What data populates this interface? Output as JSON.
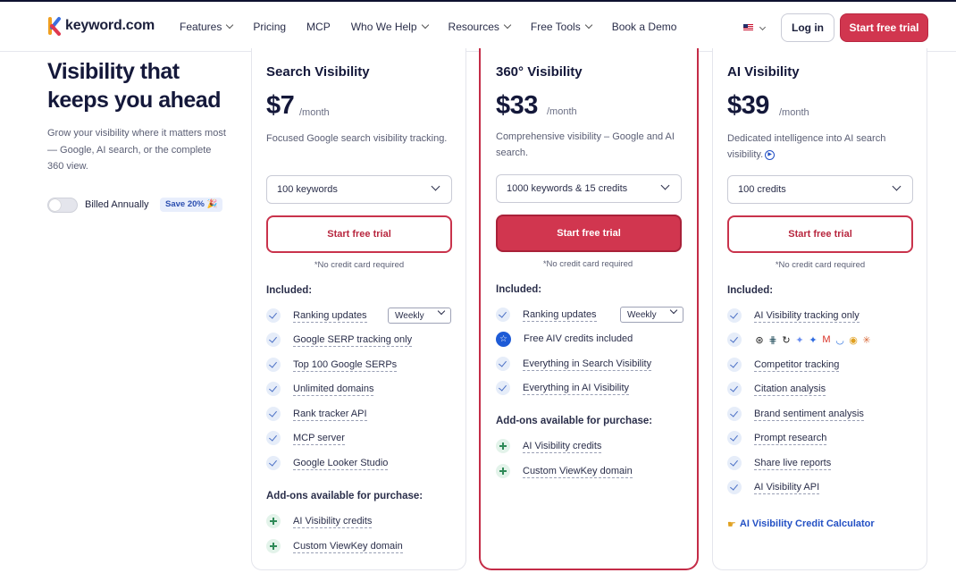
{
  "header": {
    "logo_text": "keyword.com",
    "nav": [
      {
        "label": "Features",
        "dropdown": true
      },
      {
        "label": "Pricing",
        "dropdown": false
      },
      {
        "label": "MCP",
        "dropdown": false
      },
      {
        "label": "Who We Help",
        "dropdown": true
      },
      {
        "label": "Resources",
        "dropdown": true
      },
      {
        "label": "Free Tools",
        "dropdown": true
      },
      {
        "label": "Book a Demo",
        "dropdown": false
      }
    ],
    "language_icon": "us-flag-icon",
    "login_label": "Log in",
    "trial_label": "Start free trial"
  },
  "hero": {
    "title": "Visibility that keeps you ahead",
    "subtitle": "Grow your visibility where it matters most — Google, AI search, or the complete 360 view.",
    "billing_label": "Billed Annually",
    "save_badge": "Save 20% 🎉"
  },
  "colors": {
    "brand": "#d1364f",
    "accent_blue": "#2350c4",
    "check_bg": "#e6edf9",
    "plus_bg": "#e3f3ea"
  },
  "plans": [
    {
      "title": "Search Visibility",
      "price": "$7",
      "period": "/month",
      "description": "Focused Google search visibility tracking.",
      "select_value": "100 keywords",
      "cta": "Start free trial",
      "note": "*No credit card required",
      "included_label": "Included:",
      "features": [
        "Ranking updates",
        "Google SERP tracking only",
        "Top 100 Google SERPs",
        "Unlimited domains",
        "Rank tracker API",
        "MCP server",
        "Google Looker Studio"
      ],
      "frequency": "Weekly",
      "addons_label": "Add-ons available for purchase:",
      "addons": [
        "AI Visibility credits",
        "Custom ViewKey domain"
      ]
    },
    {
      "title": "360° Visibility",
      "price": "$33",
      "period": "/month",
      "description": "Comprehensive visibility – Google and AI search.",
      "select_value": "1000 keywords & 15 credits",
      "cta": "Start free trial",
      "note": "*No credit card required",
      "included_label": "Included:",
      "features": [
        "Ranking updates",
        "Free AIV credits included",
        "Everything in Search Visibility",
        "Everything in AI Visibility"
      ],
      "frequency": "Weekly",
      "addons_label": "Add-ons available for purchase:",
      "addons": [
        "AI Visibility credits",
        "Custom ViewKey domain"
      ]
    },
    {
      "title": "AI Visibility",
      "price": "$39",
      "period": "/month",
      "description": "Dedicated intelligence into AI search visibility.",
      "select_value": "100 credits",
      "cta": "Start free trial",
      "note": "*No credit card required",
      "included_label": "Included:",
      "features": [
        "AI Visibility tracking only",
        "",
        "Competitor tracking",
        "Citation analysis",
        "Brand sentiment analysis",
        "Prompt research",
        "Share live reports",
        "AI Visibility API"
      ],
      "ai_engine_icons": [
        "chatgpt-icon",
        "perplexity-icon",
        "grok-icon",
        "gemini-icon",
        "google-ai-icon",
        "gmail-icon",
        "copilot-icon",
        "chrome-icon",
        "claude-icon"
      ],
      "calculator_link": "AI Visibility Credit Calculator"
    }
  ]
}
